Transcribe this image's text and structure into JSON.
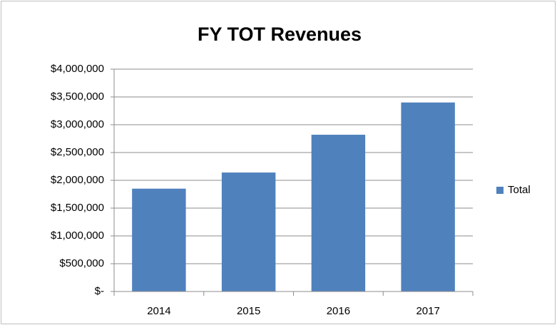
{
  "chart_data": {
    "type": "bar",
    "title": "FY TOT Revenues",
    "categories": [
      "2014",
      "2015",
      "2016",
      "2017"
    ],
    "series": [
      {
        "name": "Total",
        "color": "#4f81bd",
        "values": [
          1850000,
          2140000,
          2820000,
          3400000
        ]
      }
    ],
    "ylim": [
      0,
      4000000
    ],
    "yticks": [
      {
        "value": 0,
        "label": "$-"
      },
      {
        "value": 500000,
        "label": "$500,000"
      },
      {
        "value": 1000000,
        "label": "$1,000,000"
      },
      {
        "value": 1500000,
        "label": "$1,500,000"
      },
      {
        "value": 2000000,
        "label": "$2,000,000"
      },
      {
        "value": 2500000,
        "label": "$2,500,000"
      },
      {
        "value": 3000000,
        "label": "$3,000,000"
      },
      {
        "value": 3500000,
        "label": "$3,500,000"
      },
      {
        "value": 4000000,
        "label": "$4,000,000"
      }
    ],
    "grid": true,
    "legend": "right"
  }
}
